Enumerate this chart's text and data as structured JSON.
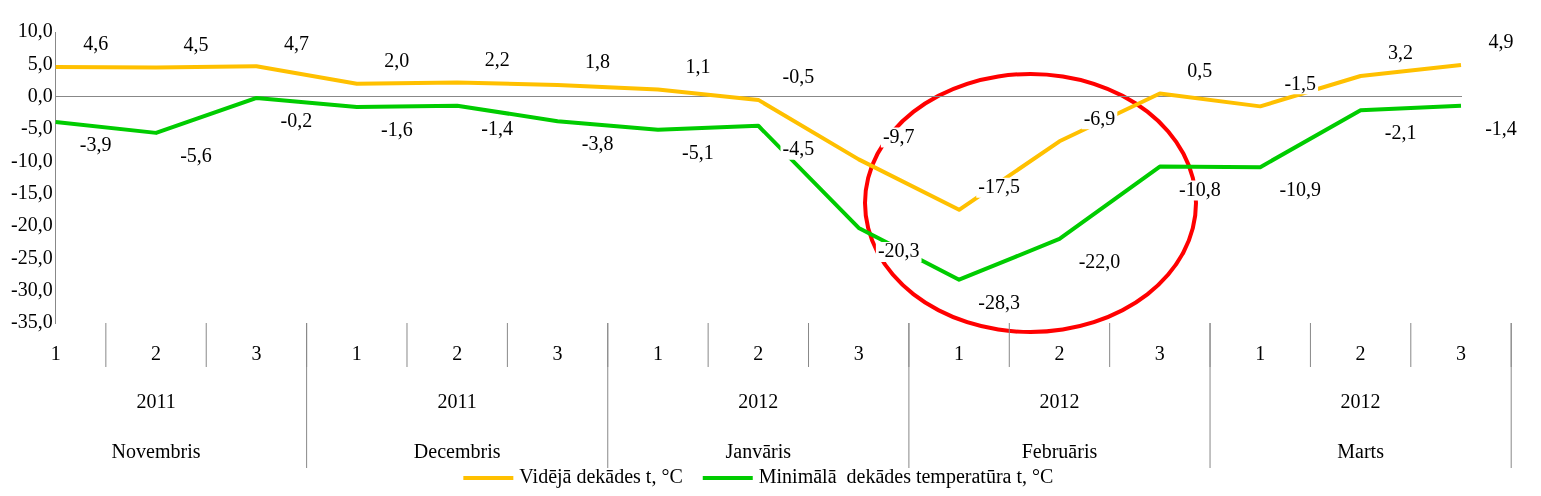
{
  "chart_data": {
    "type": "line",
    "categories": [
      "1",
      "2",
      "3",
      "1",
      "2",
      "3",
      "1",
      "2",
      "3",
      "1",
      "2",
      "3",
      "1",
      "2",
      "3"
    ],
    "series": [
      {
        "name": "Vidējā dekādes t, °C",
        "color": "#ffc000",
        "values": [
          4.6,
          4.5,
          4.7,
          2.0,
          2.2,
          1.8,
          1.1,
          -0.5,
          -9.7,
          -17.5,
          -6.9,
          0.5,
          -1.5,
          3.2,
          4.9
        ],
        "value_labels": [
          "4,6",
          "4,5",
          "4,7",
          "2,0",
          "2,2",
          "1,8",
          "1,1",
          "-0,5",
          "-9,7",
          "-17,5",
          "-6,9",
          "0,5",
          "-1,5",
          "3,2",
          "4,9"
        ]
      },
      {
        "name": "Minimālā  dekādes temperatūra t, °C",
        "color": "#00cc00",
        "values": [
          -3.9,
          -5.6,
          -0.2,
          -1.6,
          -1.4,
          -3.8,
          -5.1,
          -4.5,
          -20.3,
          -28.3,
          -22.0,
          -10.8,
          -10.9,
          -2.1,
          -1.4
        ],
        "value_labels": [
          "-3,9",
          "-5,6",
          "-0,2",
          "-1,6",
          "-1,4",
          "-3,8",
          "-5,1",
          "-4,5",
          "-20,3",
          "-28,3",
          "-22,0",
          "-10,8",
          "-10,9",
          "-2,1",
          "-1,4"
        ]
      }
    ],
    "annotations": [
      "2011",
      "2011",
      "2012",
      "2012",
      "2012",
      "Novembris",
      "Decembris",
      "Janvāris",
      "Februāris",
      "Marts"
    ],
    "ylim": [
      -35,
      10
    ],
    "yticks": [
      {
        "value": -35,
        "label": "-35,0"
      },
      {
        "value": -30,
        "label": "-30,0"
      },
      {
        "value": -25,
        "label": "-25,0"
      },
      {
        "value": -20,
        "label": "-20,0"
      },
      {
        "value": -15,
        "label": "-15,0"
      },
      {
        "value": -10,
        "label": "-10,0"
      },
      {
        "value": -5,
        "label": "-5,0"
      },
      {
        "value": 0,
        "label": "0,0"
      },
      {
        "value": 5,
        "label": "5,0"
      },
      {
        "value": 10,
        "label": "10,0"
      }
    ],
    "legend": "bottom",
    "marker": "none",
    "line_style": "solid"
  }
}
